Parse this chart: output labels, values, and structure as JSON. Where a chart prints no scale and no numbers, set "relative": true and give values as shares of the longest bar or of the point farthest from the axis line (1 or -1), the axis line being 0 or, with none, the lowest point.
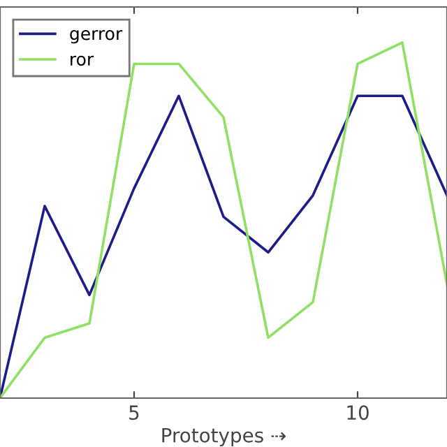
{
  "chart_data": {
    "type": "line",
    "xlabel": "Prototypes ⇢",
    "relative": true,
    "x": [
      2,
      3,
      4,
      5,
      6,
      7,
      8,
      9,
      10,
      11,
      12
    ],
    "xlim": [
      2,
      12
    ],
    "xticks": [
      5,
      10
    ],
    "series": [
      {
        "name": "gerror",
        "color": "#1c1c8a",
        "values": [
          0,
          0.54,
          0.29,
          0.59,
          0.85,
          0.51,
          0.41,
          0.57,
          0.85,
          0.85,
          0.57
        ]
      },
      {
        "name": "ror",
        "color": "#8fe065",
        "values": [
          0,
          0.17,
          0.21,
          0.94,
          0.94,
          0.79,
          0.17,
          0.27,
          0.94,
          1,
          0.32
        ]
      }
    ],
    "legend": "top left",
    "grid": false,
    "marker": "none",
    "line_style": "solid"
  }
}
